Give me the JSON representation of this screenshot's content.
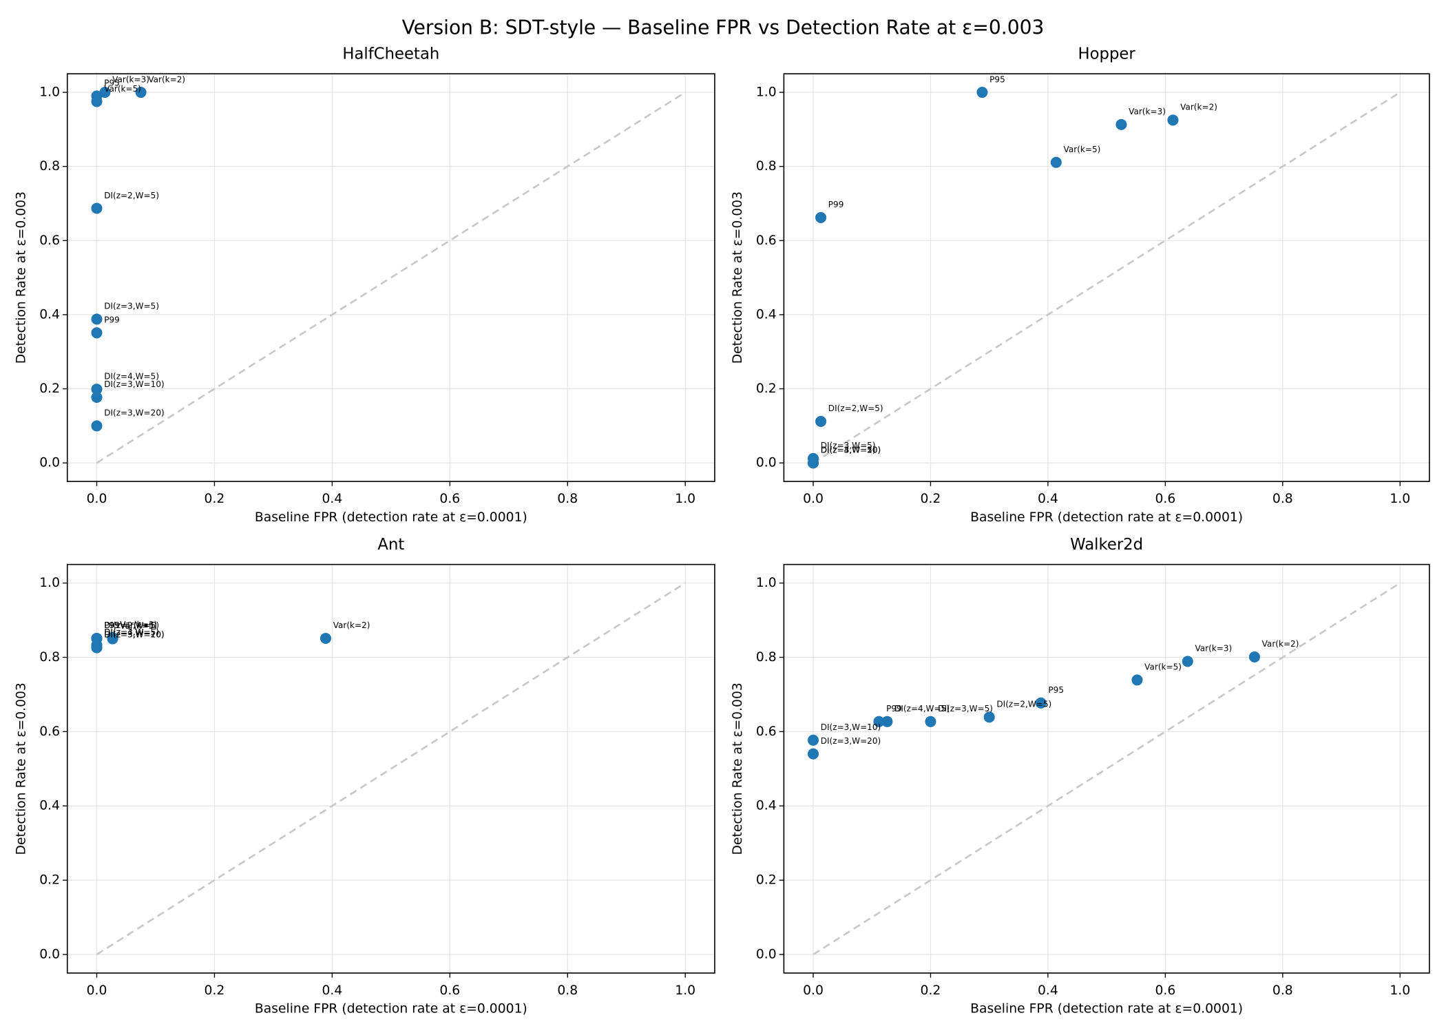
{
  "title": "Version B: SDT-style — Baseline FPR vs Detection Rate at ε=0.003",
  "chart_data": [
    {
      "type": "scatter",
      "title": "HalfCheetah",
      "x_label": "Baseline FPR (detection rate at ε=0.0001)",
      "y_label": "Detection Rate at ε=0.003",
      "color": "#1f77b4",
      "grid": true,
      "xlim": [
        -0.05,
        1.05
      ],
      "ylim": [
        -0.05,
        1.05
      ],
      "xticks": [
        {
          "value": 0,
          "label": "0.0"
        },
        0.2,
        0.4,
        0.6,
        0.8,
        {
          "value": 1,
          "label": "1.0"
        }
      ],
      "yticks": [
        {
          "value": 0,
          "label": "0.0"
        },
        0.2,
        0.4,
        0.6,
        0.8,
        {
          "value": 1,
          "label": "1.0"
        }
      ],
      "reference_line": {
        "x": [
          0,
          1
        ],
        "y": [
          0,
          1
        ],
        "color": "#c8c8c8",
        "style": "dashed"
      },
      "point_labels": [
        "Var(k=2)",
        "Var(k=3)",
        "P95",
        "Var(k=5)",
        "DI(z=2,W=5)",
        "DI(z=3,W=5)",
        "P99",
        "DI(z=4,W=5)",
        "DI(z=3,W=10)",
        "DI(z=3,W=20)"
      ],
      "x": [
        0.075,
        0.014,
        0,
        0,
        0,
        0,
        0,
        0,
        0,
        0
      ],
      "values": [
        1.0,
        1.0,
        0.99,
        0.975,
        0.687,
        0.388,
        0.351,
        0.199,
        0.177,
        0.1
      ]
    },
    {
      "type": "scatter",
      "title": "Hopper",
      "x_label": "Baseline FPR (detection rate at ε=0.0001)",
      "y_label": "Detection Rate at ε=0.003",
      "color": "#1f77b4",
      "grid": true,
      "xlim": [
        -0.05,
        1.05
      ],
      "ylim": [
        -0.05,
        1.05
      ],
      "xticks": [
        {
          "value": 0,
          "label": "0.0"
        },
        0.2,
        0.4,
        0.6,
        0.8,
        {
          "value": 1,
          "label": "1.0"
        }
      ],
      "yticks": [
        {
          "value": 0,
          "label": "0.0"
        },
        0.2,
        0.4,
        0.6,
        0.8,
        {
          "value": 1,
          "label": "1.0"
        }
      ],
      "reference_line": {
        "x": [
          0,
          1
        ],
        "y": [
          0,
          1
        ],
        "color": "#c8c8c8",
        "style": "dashed"
      },
      "point_labels": [
        "P95",
        "Var(k=3)",
        "Var(k=2)",
        "Var(k=5)",
        "P99",
        "DI(z=2,W=5)",
        "DI(z=3,W=5)",
        "DI(z=4,W=5)",
        "DI(z=3,W=10)",
        "DI(z=3,W=20)"
      ],
      "x": [
        0.288,
        0.525,
        0.613,
        0.414,
        0.013,
        0.013,
        0,
        0,
        0,
        0
      ],
      "values": [
        1.0,
        0.913,
        0.925,
        0.811,
        0.662,
        0.112,
        0.012,
        0,
        0,
        0
      ]
    },
    {
      "type": "scatter",
      "title": "Ant",
      "x_label": "Baseline FPR (detection rate at ε=0.0001)",
      "y_label": "Detection Rate at ε=0.003",
      "color": "#1f77b4",
      "grid": true,
      "xlim": [
        -0.05,
        1.05
      ],
      "ylim": [
        -0.05,
        1.05
      ],
      "xticks": [
        {
          "value": 0,
          "label": "0.0"
        },
        0.2,
        0.4,
        0.6,
        0.8,
        {
          "value": 1,
          "label": "1.0"
        }
      ],
      "yticks": [
        {
          "value": 0,
          "label": "0.0"
        },
        0.2,
        0.4,
        0.6,
        0.8,
        {
          "value": 1,
          "label": "1.0"
        }
      ],
      "reference_line": {
        "x": [
          0,
          1
        ],
        "y": [
          0,
          1
        ],
        "color": "#c8c8c8",
        "style": "dashed"
      },
      "point_labels": [
        "Var(k=2)",
        "P95",
        "DI(z=2,W=5)",
        "Var(k=3)",
        "Var(k=5)",
        "DI(z=3,W=5)",
        "DI(z=4,W=5)",
        "DI(z=3,W=10)",
        "DI(z=3,W=20)",
        "P99"
      ],
      "x": [
        0.389,
        0,
        0,
        0.027,
        0.027,
        0,
        0,
        0,
        0,
        0
      ],
      "values": [
        0.851,
        0.851,
        0.851,
        0.853,
        0.85,
        0.833,
        0.833,
        0.826,
        0.826,
        0.851
      ]
    },
    {
      "type": "scatter",
      "title": "Walker2d",
      "x_label": "Baseline FPR (detection rate at ε=0.0001)",
      "y_label": "Detection Rate at ε=0.003",
      "color": "#1f77b4",
      "grid": true,
      "xlim": [
        -0.05,
        1.05
      ],
      "ylim": [
        -0.05,
        1.05
      ],
      "xticks": [
        {
          "value": 0,
          "label": "0.0"
        },
        0.2,
        0.4,
        0.6,
        0.8,
        {
          "value": 1,
          "label": "1.0"
        }
      ],
      "yticks": [
        {
          "value": 0,
          "label": "0.0"
        },
        0.2,
        0.4,
        0.6,
        0.8,
        {
          "value": 1,
          "label": "1.0"
        }
      ],
      "reference_line": {
        "x": [
          0,
          1
        ],
        "y": [
          0,
          1
        ],
        "color": "#c8c8c8",
        "style": "dashed"
      },
      "point_labels": [
        "Var(k=2)",
        "Var(k=3)",
        "Var(k=5)",
        "P95",
        "DI(z=2,W=5)",
        "DI(z=3,W=5)",
        "DI(z=4,W=5)",
        "P99",
        "DI(z=3,W=10)",
        "DI(z=3,W=20)"
      ],
      "x": [
        0.752,
        0.638,
        0.552,
        0.388,
        0.3,
        0.2,
        0.126,
        0.112,
        0,
        0
      ],
      "values": [
        0.801,
        0.789,
        0.739,
        0.677,
        0.639,
        0.627,
        0.627,
        0.627,
        0.577,
        0.54
      ]
    }
  ]
}
